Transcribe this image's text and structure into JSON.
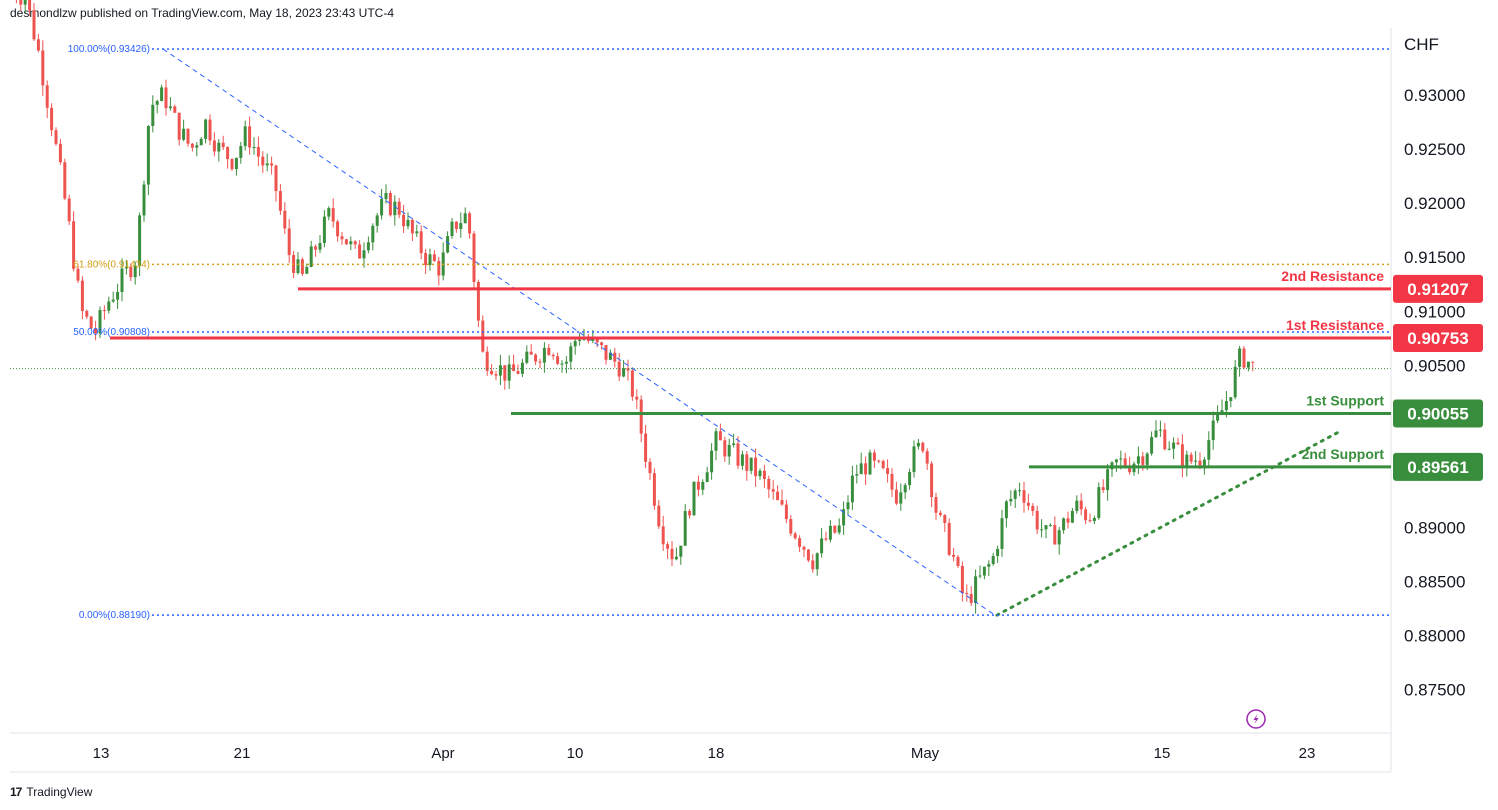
{
  "header": {
    "publisher_line": "desmondlzw published on TradingView.com, May 18, 2023 23:43 UTC-4"
  },
  "footer": {
    "brand": "TradingView",
    "logo_glyph": "17"
  },
  "axis": {
    "currency": "CHF"
  },
  "colors": {
    "bull": "#388e3c",
    "bear": "#ef5350",
    "resistance": "#f23645",
    "support": "#388e3c",
    "fib": "#2962ff",
    "fib618": "#d4a017",
    "purple": "#9c27b0"
  },
  "chart_data": {
    "type": "candlestick",
    "symbol_currency": "CHF",
    "ylim": [
      0.871,
      0.9362
    ],
    "y_ticks": [
      "0.93000",
      "0.92500",
      "0.92000",
      "0.91500",
      "0.91000",
      "0.90500",
      "0.90000",
      "0.89500",
      "0.89000",
      "0.88500",
      "0.88000",
      "0.87500"
    ],
    "x_ticks": [
      "13",
      "21",
      "Apr",
      "10",
      "18",
      "May",
      "15",
      "23"
    ],
    "fib_levels": [
      {
        "label": "100.00%(0.93426)",
        "value": 0.93426
      },
      {
        "label": "61.80%(0.91434)",
        "value": 0.91434
      },
      {
        "label": "50.00%(0.90808)",
        "value": 0.90808
      },
      {
        "label": "0.00%(0.88190)",
        "value": 0.8819
      }
    ],
    "levels": [
      {
        "name": "2nd Resistance",
        "value": 0.91207,
        "badge": "0.91207",
        "kind": "resistance"
      },
      {
        "name": "1st Resistance",
        "value": 0.90753,
        "badge": "0.90753",
        "kind": "resistance"
      },
      {
        "name": "1st Support",
        "value": 0.90055,
        "badge": "0.90055",
        "kind": "support"
      },
      {
        "name": "2nd Support",
        "value": 0.89561,
        "badge": "0.89561",
        "kind": "support"
      }
    ],
    "last_price": 0.9047,
    "close_path": [
      0.9398,
      0.939,
      0.9335,
      0.9265,
      0.919,
      0.91,
      0.908,
      0.911,
      0.913,
      0.915,
      0.929,
      0.93,
      0.927,
      0.925,
      0.9275,
      0.925,
      0.924,
      0.9265,
      0.924,
      0.922,
      0.9155,
      0.913,
      0.916,
      0.919,
      0.917,
      0.915,
      0.918,
      0.92,
      0.9195,
      0.917,
      0.915,
      0.914,
      0.918,
      0.919,
      0.906,
      0.905,
      0.904,
      0.905,
      0.906,
      0.907,
      0.905,
      0.908,
      0.907,
      0.906,
      0.905,
      0.9025,
      0.896,
      0.89,
      0.887,
      0.892,
      0.895,
      0.898,
      0.897,
      0.896,
      0.895,
      0.893,
      0.891,
      0.889,
      0.887,
      0.889,
      0.89,
      0.895,
      0.896,
      0.895,
      0.893,
      0.896,
      0.898,
      0.891,
      0.888,
      0.883,
      0.885,
      0.887,
      0.892,
      0.894,
      0.891,
      0.889,
      0.89,
      0.892,
      0.891,
      0.8935,
      0.896,
      0.896,
      0.897,
      0.899,
      0.8975,
      0.896,
      0.8965,
      0.899,
      0.902,
      0.906,
      0.9047
    ]
  }
}
